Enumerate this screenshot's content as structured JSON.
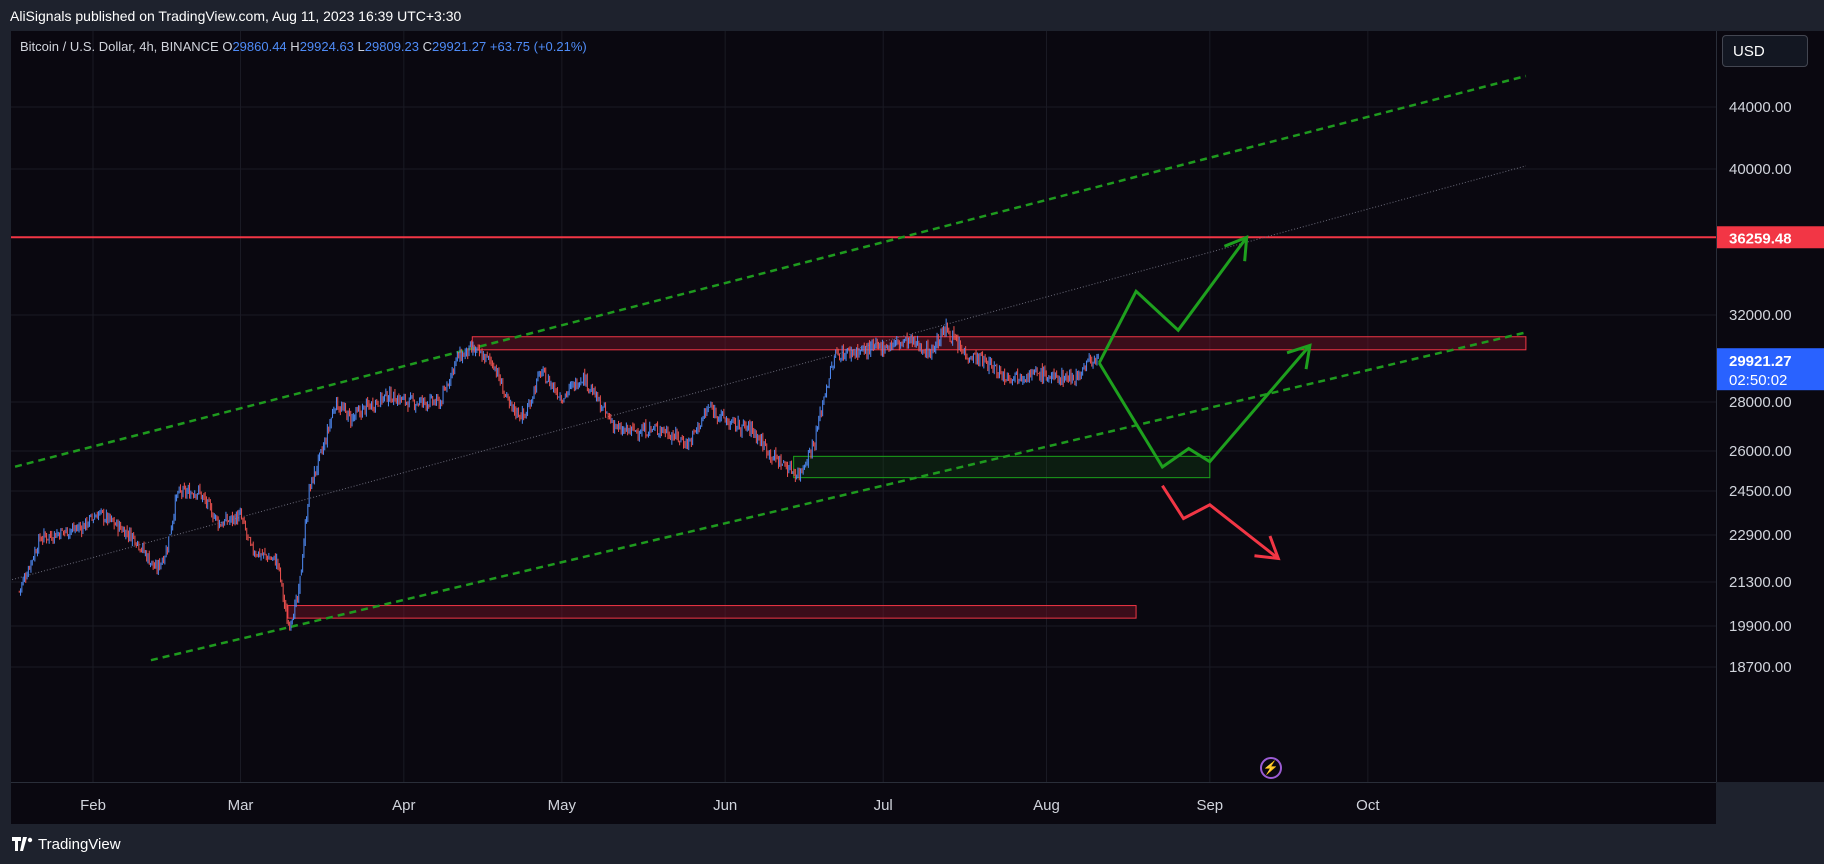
{
  "header": {
    "published_by": "AliSignals published on TradingView.com, Aug 11, 2023 16:39 UTC+3:30"
  },
  "legend": {
    "symbol": "Bitcoin / U.S. Dollar, 4h, BINANCE",
    "open_label": "O",
    "open": "29860.44",
    "high_label": "H",
    "high": "29924.63",
    "low_label": "L",
    "low": "29809.23",
    "close_label": "C",
    "close": "29921.27",
    "change": "+63.75 (+0.21%)"
  },
  "currency_button": "USD",
  "footer": {
    "brand": "TradingView"
  },
  "icons": {
    "flash": "lightning-icon",
    "logo": "tradingview-logo-icon"
  },
  "colors": {
    "up": "#4f8cf7",
    "down": "#ef5350",
    "resistance": "#f23645",
    "support_zone": "#1aa31a",
    "channel": "#1b8a1b",
    "last_price": "#2962ff"
  },
  "chart_data": {
    "type": "candlestick",
    "symbol": "BTCUSD",
    "timeframe": "4h",
    "y_ticks": [
      44000,
      40000,
      32000,
      28000,
      26000,
      24500,
      22900,
      21300,
      19900,
      18700
    ],
    "y_tick_labels": [
      "44000.00",
      "40000.00",
      "32000.00",
      "28000.00",
      "26000.00",
      "24500.00",
      "22900.00",
      "21300.00",
      "19900.00",
      "18700.00"
    ],
    "x_ticks": [
      "Feb",
      "Mar",
      "Apr",
      "May",
      "Jun",
      "Jul",
      "Aug",
      "Sep",
      "Oct"
    ],
    "price_path": [
      [
        "2023-01-18",
        21000
      ],
      [
        "2023-01-22",
        22800
      ],
      [
        "2023-01-30",
        23200
      ],
      [
        "2023-02-02",
        23700
      ],
      [
        "2023-02-09",
        22800
      ],
      [
        "2023-02-13",
        21700
      ],
      [
        "2023-02-15",
        22400
      ],
      [
        "2023-02-17",
        24400
      ],
      [
        "2023-02-21",
        24500
      ],
      [
        "2023-02-25",
        23300
      ],
      [
        "2023-03-01",
        23600
      ],
      [
        "2023-03-03",
        22400
      ],
      [
        "2023-03-08",
        22000
      ],
      [
        "2023-03-10",
        19900
      ],
      [
        "2023-03-12",
        20800
      ],
      [
        "2023-03-14",
        24500
      ],
      [
        "2023-03-17",
        26300
      ],
      [
        "2023-03-19",
        28000
      ],
      [
        "2023-03-22",
        27300
      ],
      [
        "2023-03-25",
        27800
      ],
      [
        "2023-03-29",
        28300
      ],
      [
        "2023-04-02",
        28000
      ],
      [
        "2023-04-08",
        28000
      ],
      [
        "2023-04-11",
        30000
      ],
      [
        "2023-04-14",
        30400
      ],
      [
        "2023-04-18",
        29800
      ],
      [
        "2023-04-21",
        27800
      ],
      [
        "2023-04-24",
        27400
      ],
      [
        "2023-04-27",
        29400
      ],
      [
        "2023-05-01",
        28200
      ],
      [
        "2023-05-05",
        29200
      ],
      [
        "2023-05-09",
        27600
      ],
      [
        "2023-05-12",
        26800
      ],
      [
        "2023-05-20",
        26900
      ],
      [
        "2023-05-25",
        26300
      ],
      [
        "2023-05-29",
        27800
      ],
      [
        "2023-06-02",
        27100
      ],
      [
        "2023-06-06",
        26900
      ],
      [
        "2023-06-10",
        25800
      ],
      [
        "2023-06-15",
        25100
      ],
      [
        "2023-06-18",
        26400
      ],
      [
        "2023-06-20",
        28500
      ],
      [
        "2023-06-22",
        30200
      ],
      [
        "2023-06-28",
        30400
      ],
      [
        "2023-07-06",
        30800
      ],
      [
        "2023-07-10",
        30300
      ],
      [
        "2023-07-13",
        31400
      ],
      [
        "2023-07-16",
        30300
      ],
      [
        "2023-07-20",
        29900
      ],
      [
        "2023-07-24",
        29200
      ],
      [
        "2023-07-31",
        29300
      ],
      [
        "2023-08-02",
        29100
      ],
      [
        "2023-08-07",
        29200
      ],
      [
        "2023-08-09",
        29900
      ],
      [
        "2023-08-11",
        29921
      ]
    ],
    "horizontal_level": {
      "price": 36259.48,
      "label": "36259.48"
    },
    "zones": [
      {
        "from": "2023-04-14",
        "to": "2023-10-31",
        "low": 30400,
        "high": 31000,
        "color": "red"
      },
      {
        "from": "2023-06-14",
        "to": "2023-09-01",
        "low": 25000,
        "high": 25800,
        "color": "green"
      },
      {
        "from": "2023-03-10",
        "to": "2023-08-18",
        "low": 20150,
        "high": 20550,
        "color": "red"
      }
    ],
    "channel_lines": [
      {
        "style": "dashed",
        "color": "green",
        "from": [
          "2023-01-15",
          25300
        ],
        "to": [
          "2023-10-31",
          46000
        ]
      },
      {
        "style": "dashed",
        "color": "green",
        "from": [
          "2023-02-12",
          18900
        ],
        "to": [
          "2023-10-31",
          31200
        ]
      },
      {
        "style": "dotted",
        "color": "gray",
        "from": [
          "2023-01-15",
          21300
        ],
        "to": [
          "2023-10-31",
          40200
        ]
      }
    ],
    "projection_bullish_1": [
      [
        "2023-08-11",
        29800
      ],
      [
        "2023-08-18",
        33300
      ],
      [
        "2023-08-26",
        31300
      ],
      [
        "2023-09-08",
        36259
      ]
    ],
    "projection_bullish_2": [
      [
        "2023-08-11",
        29800
      ],
      [
        "2023-08-23",
        25400
      ],
      [
        "2023-08-28",
        26100
      ],
      [
        "2023-09-01",
        25600
      ],
      [
        "2023-09-20",
        30600
      ]
    ],
    "projection_bearish": [
      [
        "2023-08-23",
        24700
      ],
      [
        "2023-08-27",
        23500
      ],
      [
        "2023-09-01",
        24000
      ],
      [
        "2023-09-14",
        22100
      ]
    ],
    "last_price": {
      "value": "29921.27",
      "countdown": "02:50:02"
    },
    "grid": true
  }
}
